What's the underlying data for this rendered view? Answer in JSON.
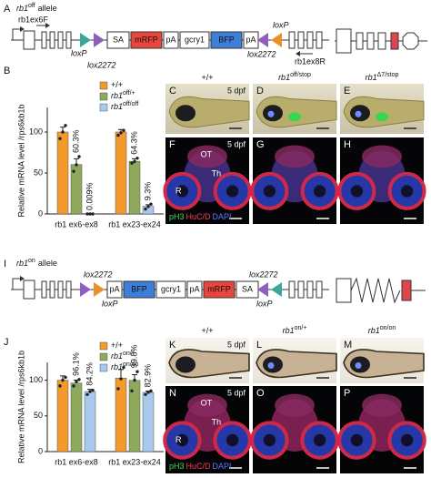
{
  "panel_A": {
    "letter": "A",
    "title": "rb1",
    "title_sup": "off",
    "title_suffix": "allele",
    "primer_forward": "rb1ex6F",
    "primer_reverse": "rb1ex8R",
    "lox_labels": [
      "loxP",
      "lox2272",
      "lox2272",
      "loxP"
    ],
    "lox_colors": [
      "#3aa898",
      "#8e5fc0",
      "#8e5fc0",
      "#e8902a"
    ],
    "cassette": [
      "SA",
      "mRFP",
      "pA",
      "gcry1",
      "BFP",
      "pA"
    ]
  },
  "panel_B": {
    "letter": "B"
  },
  "panels_C_H": {
    "letters": [
      "C",
      "D",
      "E",
      "F",
      "G",
      "H"
    ],
    "genotypes": [
      {
        "text": "+/+"
      },
      {
        "text": "rb1",
        "sup": "off/stop"
      },
      {
        "text": "rb1",
        "sup": "Δ7/stop"
      }
    ],
    "stage": "5 dpf",
    "stage_section": "5 dpf",
    "regions": [
      "OT",
      "Th",
      "R"
    ],
    "stain": [
      "pH3",
      "HuC/D",
      "DAPI"
    ]
  },
  "panel_I": {
    "letter": "I",
    "title": "rb1",
    "title_sup": "on",
    "title_suffix": "allele",
    "lox_labels": [
      "lox2272",
      "loxP",
      "lox2272",
      "loxP"
    ],
    "lox_colors": [
      "#8e5fc0",
      "#e8902a",
      "#8e5fc0",
      "#3aa898"
    ],
    "cassette": [
      "pA",
      "BFP",
      "gcry1",
      "pA",
      "mRFP",
      "SA"
    ]
  },
  "panel_J": {
    "letter": "J"
  },
  "panels_K_P": {
    "letters": [
      "K",
      "L",
      "M",
      "N",
      "O",
      "P"
    ],
    "genotypes": [
      {
        "text": "+/+"
      },
      {
        "text": "rb1",
        "sup": "on/+"
      },
      {
        "text": "rb1",
        "sup": "on/on"
      }
    ],
    "stage": "5 dpf",
    "stage_section": "5 dpf",
    "regions": [
      "OT",
      "Th",
      "R"
    ],
    "stain": [
      "pH3",
      "HuC/D",
      "DAPI"
    ]
  },
  "chart_data": [
    {
      "type": "bar",
      "y_label": "Relative mRNA level /rps6kb1b",
      "categories": [
        "rb1 ex6-ex8",
        "rb1 ex23-ex24"
      ],
      "ylim": [
        0,
        130
      ],
      "yticks": [
        0,
        50,
        100
      ],
      "legend": "top-right",
      "series": [
        {
          "name": "+/+",
          "color": "#f39a2c",
          "values": [
            100,
            100
          ],
          "errors": [
            6,
            3
          ],
          "points": [
            [
              92,
              100,
              108
            ],
            [
              96,
              99,
              102
            ]
          ],
          "value_labels": [
            null,
            null
          ]
        },
        {
          "name": "rb1",
          "name_sup": "off/+",
          "color": "#8fa95c",
          "values": [
            60.3,
            64.3
          ],
          "errors": [
            7,
            3
          ],
          "points": [
            [
              52,
              60,
              70
            ],
            [
              62,
              64,
              68
            ]
          ],
          "value_labels": [
            "60.3%",
            "64.3%"
          ]
        },
        {
          "name": "rb1",
          "name_sup": "off/off",
          "color": "#a8c9ec",
          "values": [
            0.009,
            9.3
          ],
          "errors": [
            0.005,
            2
          ],
          "points": [
            [
              0,
              0,
              0
            ],
            [
              6,
              9,
              12
            ]
          ],
          "value_labels": [
            "0.009%",
            "9.3%"
          ]
        }
      ]
    },
    {
      "type": "bar",
      "y_label": "Relative mRNA level /rps6kb1b",
      "categories": [
        "rb1 ex6-ex8",
        "rb1 ex23-ex24"
      ],
      "ylim": [
        0,
        125
      ],
      "yticks": [
        0,
        50,
        100
      ],
      "legend": "top-right",
      "series": [
        {
          "name": "+/+",
          "color": "#f39a2c",
          "values": [
            100,
            103
          ],
          "errors": [
            6,
            12
          ],
          "points": [
            [
              92,
              100,
              104
            ],
            [
              88,
              102,
              118
            ]
          ],
          "value_labels": [
            null,
            null
          ]
        },
        {
          "name": "rb1",
          "name_sup": "on/+",
          "color": "#8fa95c",
          "values": [
            96.1,
            99.8
          ],
          "errors": [
            4,
            8
          ],
          "points": [
            [
              92,
              98,
              101
            ],
            [
              85,
              100,
              112
            ]
          ],
          "value_labels": [
            "96.1%",
            "99.8%"
          ]
        },
        {
          "name": "rb1",
          "name_sup": "on/on",
          "color": "#a8c9ec",
          "values": [
            84.2,
            82.9
          ],
          "errors": [
            3,
            2
          ],
          "points": [
            [
              80,
              84,
              86
            ],
            [
              80,
              83,
              85
            ]
          ],
          "value_labels": [
            "84.2%",
            "82.9%"
          ]
        }
      ]
    }
  ]
}
